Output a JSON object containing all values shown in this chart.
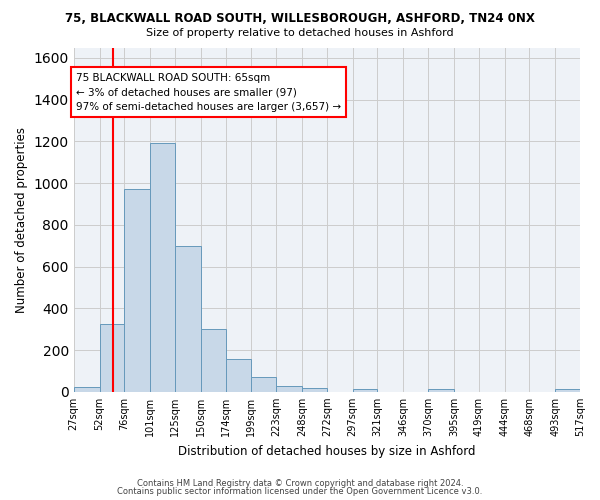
{
  "title1": "75, BLACKWALL ROAD SOUTH, WILLESBOROUGH, ASHFORD, TN24 0NX",
  "title2": "Size of property relative to detached houses in Ashford",
  "xlabel": "Distribution of detached houses by size in Ashford",
  "ylabel": "Number of detached properties",
  "footer1": "Contains HM Land Registry data © Crown copyright and database right 2024.",
  "footer2": "Contains public sector information licensed under the Open Government Licence v3.0.",
  "bin_labels": [
    "27sqm",
    "52sqm",
    "76sqm",
    "101sqm",
    "125sqm",
    "150sqm",
    "174sqm",
    "199sqm",
    "223sqm",
    "248sqm",
    "272sqm",
    "297sqm",
    "321sqm",
    "346sqm",
    "370sqm",
    "395sqm",
    "419sqm",
    "444sqm",
    "468sqm",
    "493sqm",
    "517sqm"
  ],
  "bar_values": [
    25,
    325,
    970,
    1190,
    700,
    300,
    155,
    70,
    30,
    20,
    0,
    15,
    0,
    0,
    12,
    0,
    0,
    0,
    0,
    12,
    0
  ],
  "bar_color": "#c8d8e8",
  "bar_edge_color": "#6699bb",
  "red_line_x": 65,
  "bin_edges": [
    27,
    52,
    76,
    101,
    125,
    150,
    174,
    199,
    223,
    248,
    272,
    297,
    321,
    346,
    370,
    395,
    419,
    444,
    468,
    493,
    517
  ],
  "ylim": [
    0,
    1650
  ],
  "annotation_line1": "75 BLACKWALL ROAD SOUTH: 65sqm",
  "annotation_line2": "← 3% of detached houses are smaller (97)",
  "annotation_line3": "97% of semi-detached houses are larger (3,657) →",
  "background_color": "#ffffff",
  "plot_background": "#eef2f7",
  "grid_color": "#cccccc"
}
